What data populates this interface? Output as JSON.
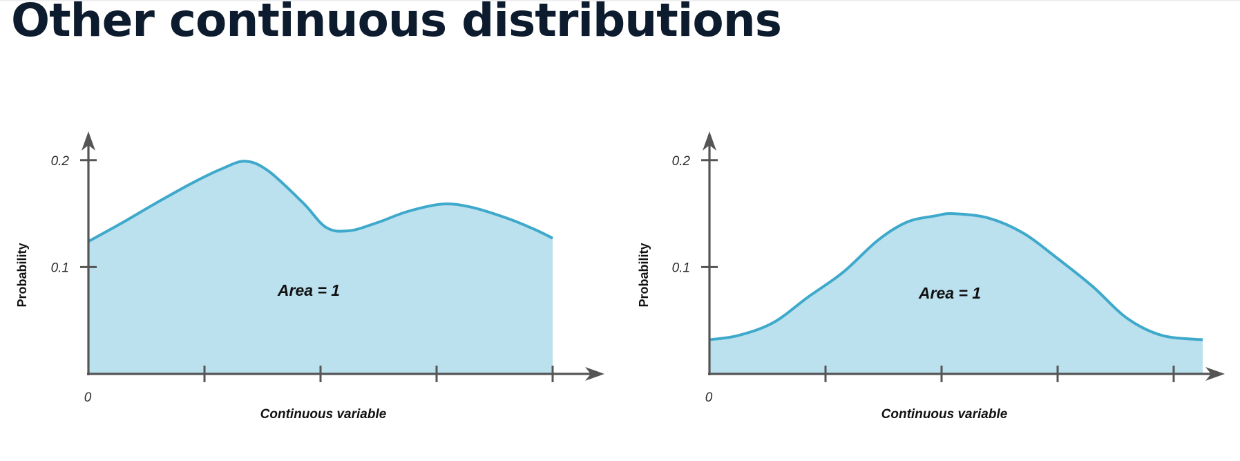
{
  "title": "Other continuous distributions",
  "colors": {
    "fill": "#bbe0ee",
    "line": "#3fa9cb",
    "axis": "#555555"
  },
  "chart_data": [
    {
      "type": "area",
      "name": "multimodal-distribution",
      "xlabel": "Continuous variable",
      "ylabel": "Probability",
      "x_tick_labels": [
        "0"
      ],
      "x_ticks": [
        0,
        1,
        2,
        3,
        4
      ],
      "y_ticks": [
        0.1,
        0.2
      ],
      "y_tick_labels": [
        "0.1",
        "0.2"
      ],
      "xlim": [
        0,
        4.45
      ],
      "ylim": [
        0,
        0.225
      ],
      "annotation": "Area = 1",
      "x": [
        0,
        0.3,
        0.6,
        0.9,
        1.15,
        1.35,
        1.55,
        1.85,
        2.05,
        2.25,
        2.5,
        2.75,
        3.05,
        3.3,
        3.6,
        3.85,
        4.0
      ],
      "y": [
        0.124,
        0.142,
        0.161,
        0.179,
        0.192,
        0.199,
        0.19,
        0.16,
        0.137,
        0.134,
        0.142,
        0.152,
        0.159,
        0.156,
        0.146,
        0.135,
        0.127
      ]
    },
    {
      "type": "area",
      "name": "unimodal-distribution",
      "xlabel": "Continuous variable",
      "ylabel": "Probability",
      "x_tick_labels": [
        "0"
      ],
      "x_ticks": [
        0,
        1,
        2,
        3,
        4
      ],
      "y_ticks": [
        0.1,
        0.2
      ],
      "y_tick_labels": [
        "0.1",
        "0.2"
      ],
      "xlim": [
        0,
        4.45
      ],
      "ylim": [
        0,
        0.225
      ],
      "annotation": "Area = 1",
      "x": [
        0,
        0.25,
        0.55,
        0.85,
        1.15,
        1.45,
        1.7,
        1.95,
        2.1,
        2.4,
        2.7,
        3.0,
        3.3,
        3.6,
        3.9,
        4.25
      ],
      "y": [
        0.032,
        0.036,
        0.048,
        0.072,
        0.095,
        0.125,
        0.142,
        0.148,
        0.15,
        0.146,
        0.132,
        0.108,
        0.082,
        0.052,
        0.036,
        0.032
      ]
    }
  ]
}
